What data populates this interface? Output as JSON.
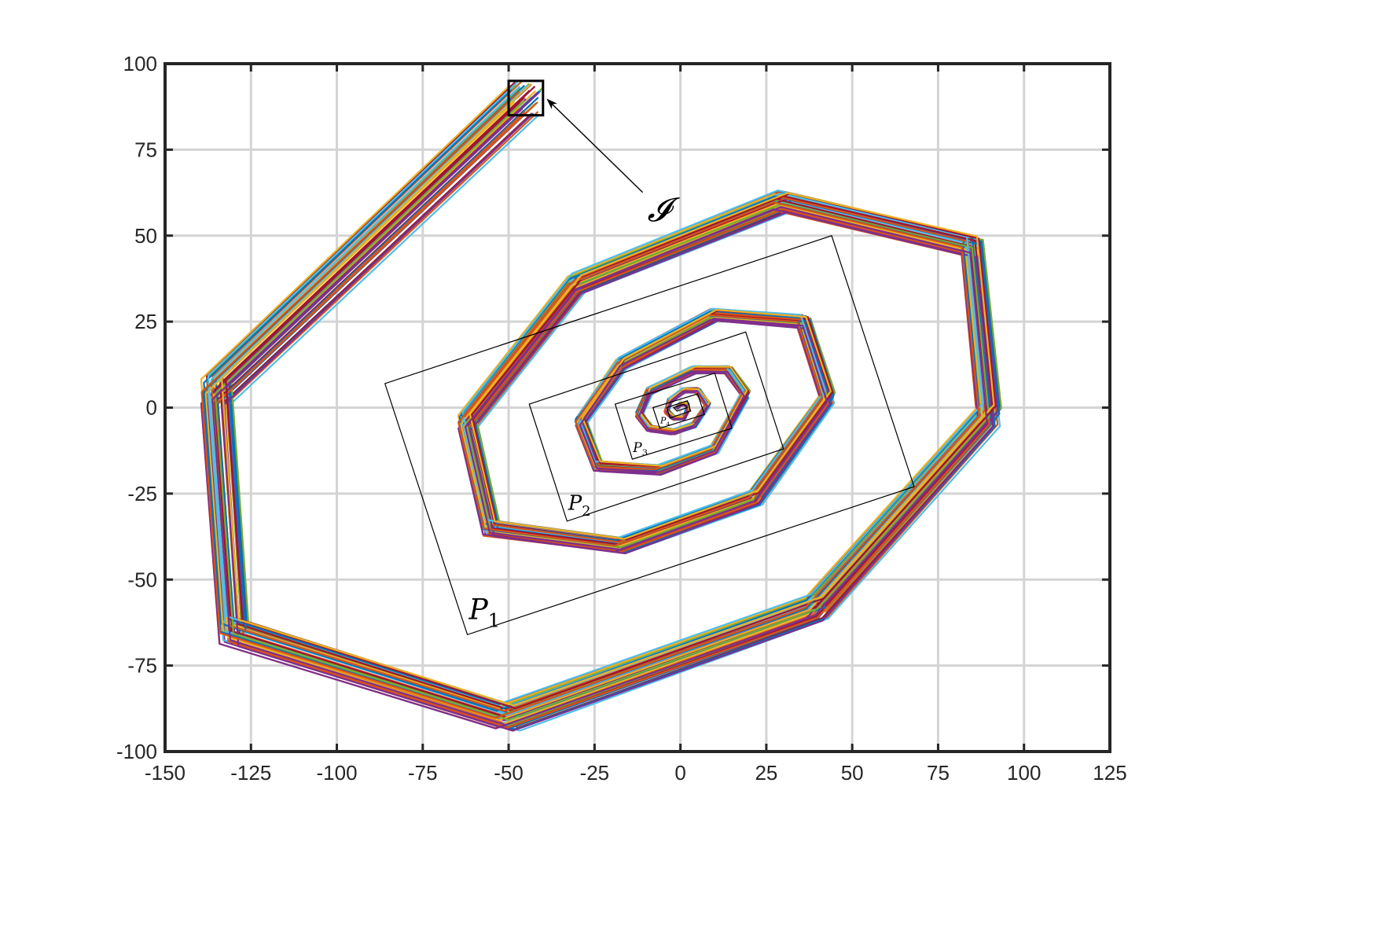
{
  "chart_data": {
    "type": "line",
    "title": "",
    "xlabel": "",
    "ylabel": "",
    "xlim": [
      -150,
      125
    ],
    "ylim": [
      -100,
      100
    ],
    "x_ticks": [
      -150,
      -125,
      -100,
      -75,
      -50,
      -25,
      0,
      25,
      50,
      75,
      100,
      125
    ],
    "y_ticks": [
      -100,
      -75,
      -50,
      -25,
      0,
      25,
      50,
      75,
      100
    ],
    "x_tick_labels": [
      "-150",
      "-125",
      "-100",
      "-75",
      "-50",
      "-25",
      "0",
      "25",
      "50",
      "75",
      "100",
      "125"
    ],
    "y_tick_labels": [
      "-100",
      "-75",
      "-50",
      "-25",
      "0",
      "25",
      "50",
      "75",
      "100"
    ],
    "grid": true,
    "series_colors": [
      "#0072BD",
      "#D95319",
      "#EDB120",
      "#7E2F8E",
      "#77AC30",
      "#4DBEEE",
      "#A2142F"
    ],
    "trajectory_vertices": [
      [
        -45,
        90
      ],
      [
        -135,
        5
      ],
      [
        -130,
        -65
      ],
      [
        -50,
        -90
      ],
      [
        40,
        -58
      ],
      [
        90,
        -2
      ],
      [
        85,
        47
      ],
      [
        30,
        60
      ],
      [
        -30,
        36
      ],
      [
        -62,
        -4
      ],
      [
        -55,
        -35
      ],
      [
        -17,
        -40
      ],
      [
        22,
        -26
      ],
      [
        43,
        3
      ],
      [
        36,
        25
      ],
      [
        10,
        27
      ],
      [
        -17,
        13
      ],
      [
        -29,
        -4
      ],
      [
        -24,
        -17
      ],
      [
        -6,
        -18
      ],
      [
        10,
        -12
      ],
      [
        19,
        4
      ],
      [
        14,
        11
      ],
      [
        4,
        11
      ],
      [
        -9,
        5
      ],
      [
        -12,
        -2
      ],
      [
        -9,
        -6
      ],
      [
        -2,
        -7
      ],
      [
        4,
        -5
      ],
      [
        8,
        1
      ],
      [
        5,
        5
      ],
      [
        1,
        5
      ],
      [
        -3,
        2
      ],
      [
        -4,
        -1
      ],
      [
        -2,
        -3
      ],
      [
        1,
        -3
      ],
      [
        2,
        -1
      ],
      [
        2,
        1
      ],
      [
        0,
        1
      ],
      [
        -1,
        0
      ]
    ],
    "polytopes": [
      {
        "label": "P_1",
        "corners": [
          [
            -86,
            7
          ],
          [
            44,
            50
          ],
          [
            68,
            -23
          ],
          [
            -62,
            -66
          ]
        ]
      },
      {
        "label": "P_2",
        "corners": [
          [
            -44,
            1
          ],
          [
            19,
            22
          ],
          [
            30,
            -12
          ],
          [
            -33,
            -33
          ]
        ]
      },
      {
        "label": "P_3",
        "corners": [
          [
            -19,
            1
          ],
          [
            10,
            10
          ],
          [
            15,
            -6
          ],
          [
            -14,
            -15
          ]
        ]
      },
      {
        "label": "P_4",
        "corners": [
          [
            -8,
            0
          ],
          [
            5,
            4
          ],
          [
            7,
            -2
          ],
          [
            -6,
            -6
          ]
        ]
      },
      {
        "label": "",
        "corners": [
          [
            -4,
            0
          ],
          [
            2,
            2
          ],
          [
            3,
            -1
          ],
          [
            -3,
            -3
          ]
        ]
      },
      {
        "label": "",
        "corners": [
          [
            -2,
            0
          ],
          [
            1,
            1
          ],
          [
            2,
            0
          ],
          [
            -1,
            -1
          ]
        ]
      }
    ],
    "initial_set": {
      "label": "𝓘",
      "xrange": [
        -50,
        -40
      ],
      "yrange": [
        85,
        95
      ],
      "annotation_x": 0,
      "annotation_y": 58
    }
  }
}
